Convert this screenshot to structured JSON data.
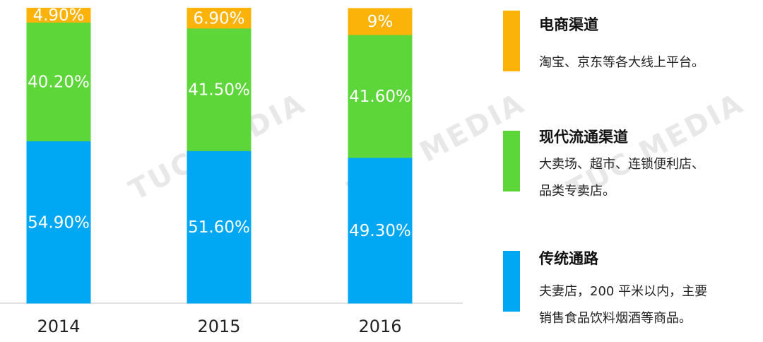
{
  "chart_data": {
    "type": "stacked-bar",
    "categories": [
      "2014",
      "2015",
      "2016"
    ],
    "series": [
      {
        "name": "传统通路",
        "color": "#00A8F3",
        "values": [
          54.9,
          51.6,
          49.3
        ],
        "labels": [
          "54.90%",
          "51.60%",
          "49.30%"
        ]
      },
      {
        "name": "现代流通渠道",
        "color": "#5DD639",
        "values": [
          40.2,
          41.5,
          41.6
        ],
        "labels": [
          "40.20%",
          "41.50%",
          "41.60%"
        ]
      },
      {
        "name": "电商渠道",
        "color": "#FBB30A",
        "values": [
          4.9,
          6.9,
          9
        ],
        "labels": [
          "4.90%",
          "6.90%",
          "9%"
        ]
      }
    ],
    "ylim": [
      0,
      100
    ],
    "grid": false,
    "legend_position": "right"
  },
  "legend": [
    {
      "title": "电商渠道",
      "color": "#FBB30A",
      "desc_lines": [
        "淘宝、京东等各大线上平台。"
      ]
    },
    {
      "title": "现代流通渠道",
      "color": "#5DD639",
      "desc_lines": [
        "大卖场、超市、连锁便利店、",
        "品类专卖店。"
      ]
    },
    {
      "title": "传统通路",
      "color": "#00A8F3",
      "desc_lines": [
        "夫妻店，200 平米以内，主要",
        "销售食品饮料烟酒等商品。"
      ]
    }
  ],
  "watermark": {
    "text": "TUC MEDIA"
  }
}
